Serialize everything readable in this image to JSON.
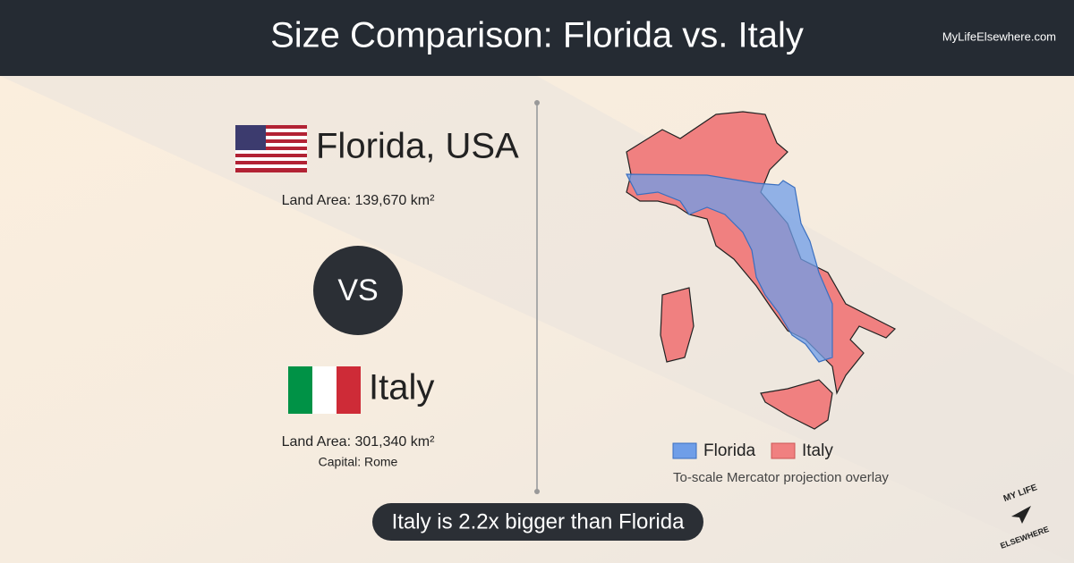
{
  "header": {
    "title": "Size Comparison: Florida vs. Italy",
    "site": "MyLifeElsewhere.com"
  },
  "left": {
    "place1": {
      "name": "Florida, USA",
      "area": "Land Area: 139,670 km²"
    },
    "versus": "VS",
    "place2": {
      "name": "Italy",
      "area": "Land Area: 301,340 km²",
      "capital": "Capital: Rome"
    }
  },
  "map": {
    "legend": [
      "Florida",
      "Italy"
    ],
    "caption": "To-scale Mercator projection overlay"
  },
  "summary": "Italy is 2.2x bigger than Florida",
  "logo": {
    "top": "MY LIFE",
    "bottom": "ELSEWHERE"
  }
}
